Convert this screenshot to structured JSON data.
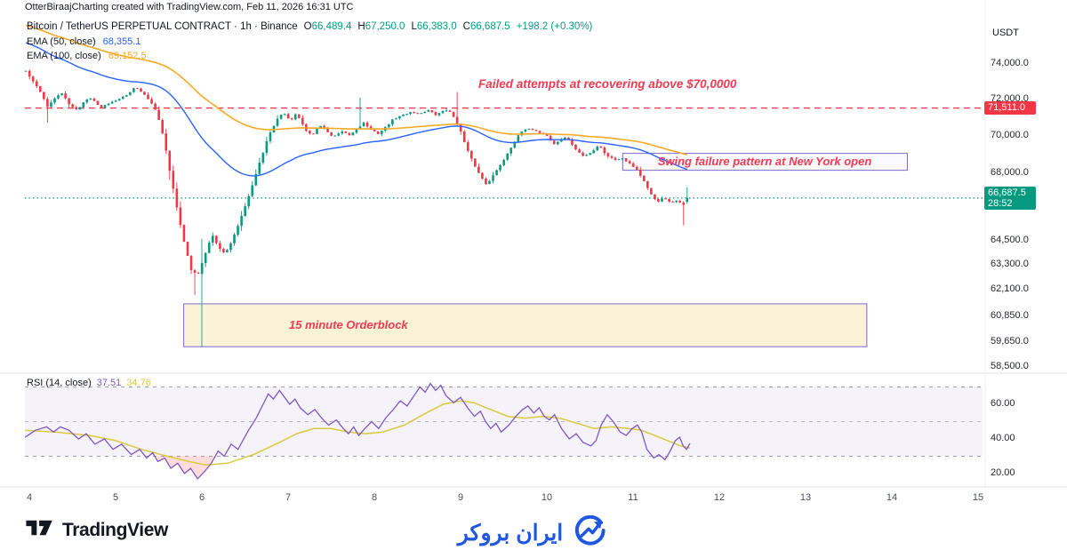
{
  "attribution": "OtterBiraajCharting created with TradingView.com, Feb 11, 2026 16:31 UTC",
  "symbol": {
    "title": "Bitcoin / TetherUS PERPETUAL CONTRACT · 1h · Binance",
    "o_label": "O",
    "o": "66,489.4",
    "h_label": "H",
    "h": "67,250.0",
    "l_label": "L",
    "l": "66,383.0",
    "c_label": "C",
    "c": "66,687.5",
    "change": "+198.2 (+0.30%)"
  },
  "indicators": {
    "ema50": {
      "label": "EMA (50, close)",
      "value": "68,355.1"
    },
    "ema100": {
      "label": "EMA (100, close)",
      "value": "69,152.5"
    },
    "rsi": {
      "label": "RSI (14, close)",
      "value": "37.51",
      "ma_value": "34.76"
    }
  },
  "annotations": {
    "failed": "Failed attempts at recovering above $70,0000",
    "swing": "Swing failure pattern at New York open",
    "orderblock": "15 minute Orderblock"
  },
  "axis": {
    "currency": "USDT",
    "price_ticks": [
      {
        "label": "74,000.0",
        "value": 74000
      },
      {
        "label": "72,000.0",
        "value": 72000
      },
      {
        "label": "70,000.0",
        "value": 70000
      },
      {
        "label": "68,000.0",
        "value": 68000
      },
      {
        "label": "64,500.0",
        "value": 64500
      },
      {
        "label": "63,300.0",
        "value": 63300
      },
      {
        "label": "62,100.0",
        "value": 62100
      },
      {
        "label": "60,850.0",
        "value": 60850
      },
      {
        "label": "59,650.0",
        "value": 59650
      },
      {
        "label": "58,500.0",
        "value": 58500
      }
    ],
    "rsi_ticks": [
      {
        "label": "60.00",
        "value": 60
      },
      {
        "label": "40.00",
        "value": 40
      },
      {
        "label": "20.00",
        "value": 20
      }
    ],
    "time_ticks": [
      {
        "label": "4",
        "day": 4
      },
      {
        "label": "5",
        "day": 5
      },
      {
        "label": "6",
        "day": 6
      },
      {
        "label": "7",
        "day": 7
      },
      {
        "label": "8",
        "day": 8
      },
      {
        "label": "9",
        "day": 9
      },
      {
        "label": "10",
        "day": 10
      },
      {
        "label": "11",
        "day": 11
      },
      {
        "label": "12",
        "day": 12
      },
      {
        "label": "13",
        "day": 13
      },
      {
        "label": "14",
        "day": 14
      },
      {
        "label": "15",
        "day": 15
      }
    ]
  },
  "price_labels": {
    "resistance": {
      "text": "71,511.0",
      "price": 71511.0
    },
    "last": {
      "text": "66,687.5",
      "countdown": "28:52",
      "price": 66687.5
    }
  },
  "footer": {
    "tradingview": "TradingView",
    "brand": "ایران بروکر"
  },
  "colors": {
    "up": "#089981",
    "down": "#f23645",
    "ema50": "#2962ff",
    "ema100": "#f7a928",
    "rsi": "#7e57c2",
    "rsi_ma": "#d7cb40",
    "annotation_red": "#ef3a52",
    "box_border": "#7e69c9",
    "vline_green": "#26a69a",
    "brand_blue": "#2057e0",
    "band_fill": "rgba(126,87,194,0.08)",
    "oversold_fill": "rgba(255,90,90,0.22)",
    "orderblock_fill": "rgba(251,242,213,0.92)"
  },
  "chart_data": {
    "type": "candlestick+rsi",
    "title": "Bitcoin / TetherUS PERPETUAL CONTRACT 1h Binance",
    "price_scale": "log",
    "time_range_days": [
      4,
      15
    ],
    "last_candle": {
      "o": 66489.4,
      "h": 67250.0,
      "l": 66383.0,
      "c": 66687.5
    },
    "ema50_last": 68355.1,
    "ema100_last": 69152.5,
    "rsi_last": 37.51,
    "rsi_ma_last": 34.76,
    "levels": {
      "resistance": 71511.0,
      "last_close": 66687.5
    },
    "rsi_levels": [
      70,
      50,
      30
    ],
    "orderblock_box": {
      "d1": 5.79,
      "d2": 13.71,
      "p1": 61430,
      "p2": 59420
    },
    "swing_box": {
      "d1": 10.88,
      "d2": 14.18,
      "p1": 69040,
      "p2": 68140
    },
    "vline": {
      "d": 6.0,
      "p1": 64600,
      "p2": 59420
    },
    "render": {
      "seed": 42,
      "jitter": 40,
      "count": 185,
      "start_day": 3.96,
      "ema50_seed": 75300,
      "ema100_seed": 76300
    },
    "wick_overrides": [
      {
        "day": 4.21,
        "low": 70700
      },
      {
        "day": 5.92,
        "low": 61850
      },
      {
        "day": 7.84,
        "high": 72100
      },
      {
        "day": 8.82,
        "high": 71511
      },
      {
        "day": 8.96,
        "high": 72400
      },
      {
        "day": 11.59,
        "low": 65290
      }
    ],
    "close_keypoints": [
      [
        3.96,
        73600
      ],
      [
        4.04,
        73000
      ],
      [
        4.12,
        72500
      ],
      [
        4.21,
        71600
      ],
      [
        4.29,
        72000
      ],
      [
        4.37,
        72400
      ],
      [
        4.46,
        71700
      ],
      [
        4.56,
        71400
      ],
      [
        4.64,
        71900
      ],
      [
        4.72,
        72100
      ],
      [
        4.82,
        71500
      ],
      [
        4.92,
        71800
      ],
      [
        5.02,
        72000
      ],
      [
        5.12,
        72200
      ],
      [
        5.22,
        72700
      ],
      [
        5.3,
        72400
      ],
      [
        5.4,
        71900
      ],
      [
        5.48,
        71300
      ],
      [
        5.56,
        69800
      ],
      [
        5.64,
        67800
      ],
      [
        5.72,
        66000
      ],
      [
        5.8,
        64300
      ],
      [
        5.88,
        63000
      ],
      [
        5.96,
        62900
      ],
      [
        6.04,
        63900
      ],
      [
        6.12,
        64800
      ],
      [
        6.2,
        64100
      ],
      [
        6.28,
        63900
      ],
      [
        6.37,
        64700
      ],
      [
        6.46,
        65800
      ],
      [
        6.56,
        67000
      ],
      [
        6.66,
        68400
      ],
      [
        6.76,
        69800
      ],
      [
        6.86,
        70800
      ],
      [
        6.94,
        71300
      ],
      [
        7.02,
        70800
      ],
      [
        7.1,
        71200
      ],
      [
        7.2,
        70300
      ],
      [
        7.28,
        70000
      ],
      [
        7.36,
        70600
      ],
      [
        7.44,
        70300
      ],
      [
        7.52,
        69900
      ],
      [
        7.62,
        70200
      ],
      [
        7.72,
        70000
      ],
      [
        7.8,
        70400
      ],
      [
        7.88,
        70700
      ],
      [
        7.96,
        70300
      ],
      [
        8.04,
        70100
      ],
      [
        8.12,
        70400
      ],
      [
        8.22,
        70900
      ],
      [
        8.32,
        71100
      ],
      [
        8.42,
        71300
      ],
      [
        8.52,
        71200
      ],
      [
        8.62,
        71400
      ],
      [
        8.72,
        71100
      ],
      [
        8.82,
        71450
      ],
      [
        8.9,
        71200
      ],
      [
        8.98,
        70500
      ],
      [
        9.06,
        69400
      ],
      [
        9.14,
        68600
      ],
      [
        9.22,
        67900
      ],
      [
        9.3,
        67400
      ],
      [
        9.4,
        68000
      ],
      [
        9.5,
        68700
      ],
      [
        9.6,
        69500
      ],
      [
        9.7,
        70200
      ],
      [
        9.8,
        70400
      ],
      [
        9.9,
        70200
      ],
      [
        10.0,
        70000
      ],
      [
        10.08,
        69500
      ],
      [
        10.16,
        69800
      ],
      [
        10.24,
        69900
      ],
      [
        10.32,
        69300
      ],
      [
        10.42,
        68900
      ],
      [
        10.52,
        69100
      ],
      [
        10.6,
        69500
      ],
      [
        10.68,
        69000
      ],
      [
        10.78,
        68700
      ],
      [
        10.88,
        68800
      ],
      [
        10.96,
        68500
      ],
      [
        11.04,
        68200
      ],
      [
        11.12,
        67600
      ],
      [
        11.2,
        66900
      ],
      [
        11.28,
        66500
      ],
      [
        11.36,
        66700
      ],
      [
        11.44,
        66400
      ],
      [
        11.52,
        66600
      ],
      [
        11.58,
        66300
      ],
      [
        11.63,
        66500
      ]
    ],
    "rsi_keypoints": [
      [
        3.95,
        41
      ],
      [
        4.07,
        45
      ],
      [
        4.2,
        47
      ],
      [
        4.28,
        44
      ],
      [
        4.36,
        47
      ],
      [
        4.46,
        45
      ],
      [
        4.57,
        40
      ],
      [
        4.66,
        43
      ],
      [
        4.76,
        37
      ],
      [
        4.87,
        40
      ],
      [
        4.97,
        34
      ],
      [
        5.07,
        37
      ],
      [
        5.18,
        31
      ],
      [
        5.28,
        34
      ],
      [
        5.36,
        29
      ],
      [
        5.43,
        32
      ],
      [
        5.49,
        27
      ],
      [
        5.57,
        29
      ],
      [
        5.64,
        23
      ],
      [
        5.72,
        26
      ],
      [
        5.8,
        20
      ],
      [
        5.87,
        23
      ],
      [
        5.95,
        17
      ],
      [
        6.03,
        21
      ],
      [
        6.11,
        26
      ],
      [
        6.19,
        33
      ],
      [
        6.26,
        30
      ],
      [
        6.34,
        37
      ],
      [
        6.42,
        34
      ],
      [
        6.53,
        44
      ],
      [
        6.63,
        52
      ],
      [
        6.71,
        60
      ],
      [
        6.77,
        66
      ],
      [
        6.83,
        63
      ],
      [
        6.9,
        68
      ],
      [
        6.96,
        64
      ],
      [
        7.02,
        60
      ],
      [
        7.08,
        63
      ],
      [
        7.14,
        58
      ],
      [
        7.23,
        54
      ],
      [
        7.31,
        57
      ],
      [
        7.39,
        52
      ],
      [
        7.47,
        48
      ],
      [
        7.56,
        51
      ],
      [
        7.64,
        46
      ],
      [
        7.7,
        43
      ],
      [
        7.76,
        47
      ],
      [
        7.82,
        42
      ],
      [
        7.89,
        46
      ],
      [
        7.97,
        50
      ],
      [
        8.05,
        46
      ],
      [
        8.13,
        52
      ],
      [
        8.22,
        57
      ],
      [
        8.3,
        62
      ],
      [
        8.38,
        59
      ],
      [
        8.46,
        65
      ],
      [
        8.53,
        70
      ],
      [
        8.59,
        67
      ],
      [
        8.65,
        72
      ],
      [
        8.71,
        68
      ],
      [
        8.77,
        71
      ],
      [
        8.83,
        65
      ],
      [
        8.92,
        61
      ],
      [
        9.0,
        64
      ],
      [
        9.08,
        58
      ],
      [
        9.16,
        53
      ],
      [
        9.23,
        56
      ],
      [
        9.29,
        50
      ],
      [
        9.35,
        46
      ],
      [
        9.41,
        49
      ],
      [
        9.47,
        44
      ],
      [
        9.56,
        48
      ],
      [
        9.64,
        53
      ],
      [
        9.72,
        57
      ],
      [
        9.78,
        59
      ],
      [
        9.85,
        55
      ],
      [
        9.91,
        58
      ],
      [
        9.97,
        53
      ],
      [
        10.03,
        51
      ],
      [
        10.09,
        54
      ],
      [
        10.17,
        46
      ],
      [
        10.26,
        40
      ],
      [
        10.34,
        43
      ],
      [
        10.42,
        38
      ],
      [
        10.51,
        36
      ],
      [
        10.57,
        39
      ],
      [
        10.63,
        48
      ],
      [
        10.7,
        54
      ],
      [
        10.77,
        50
      ],
      [
        10.85,
        44
      ],
      [
        10.92,
        42
      ],
      [
        10.99,
        46
      ],
      [
        11.05,
        48
      ],
      [
        11.1,
        44
      ],
      [
        11.16,
        34
      ],
      [
        11.24,
        29
      ],
      [
        11.3,
        31
      ],
      [
        11.37,
        28
      ],
      [
        11.43,
        33
      ],
      [
        11.49,
        39
      ],
      [
        11.54,
        41
      ],
      [
        11.58,
        36
      ],
      [
        11.62,
        34
      ],
      [
        11.66,
        37.5
      ]
    ],
    "rsi_ma_keypoints": [
      [
        3.95,
        45
      ],
      [
        4.3,
        44
      ],
      [
        4.7,
        42
      ],
      [
        5.0,
        39
      ],
      [
        5.3,
        34
      ],
      [
        5.6,
        30
      ],
      [
        5.85,
        27
      ],
      [
        6.05,
        25
      ],
      [
        6.3,
        26
      ],
      [
        6.6,
        31
      ],
      [
        6.9,
        38
      ],
      [
        7.1,
        43
      ],
      [
        7.3,
        46
      ],
      [
        7.5,
        46
      ],
      [
        7.7,
        44
      ],
      [
        7.9,
        43
      ],
      [
        8.1,
        44
      ],
      [
        8.35,
        48
      ],
      [
        8.6,
        55
      ],
      [
        8.8,
        60
      ],
      [
        9.0,
        62
      ],
      [
        9.15,
        61
      ],
      [
        9.35,
        57
      ],
      [
        9.55,
        53
      ],
      [
        9.75,
        52
      ],
      [
        9.95,
        53
      ],
      [
        10.15,
        52
      ],
      [
        10.35,
        49
      ],
      [
        10.55,
        46
      ],
      [
        10.75,
        47
      ],
      [
        10.95,
        46
      ],
      [
        11.1,
        45
      ],
      [
        11.25,
        42
      ],
      [
        11.4,
        39
      ],
      [
        11.55,
        36
      ],
      [
        11.66,
        34.8
      ]
    ]
  }
}
